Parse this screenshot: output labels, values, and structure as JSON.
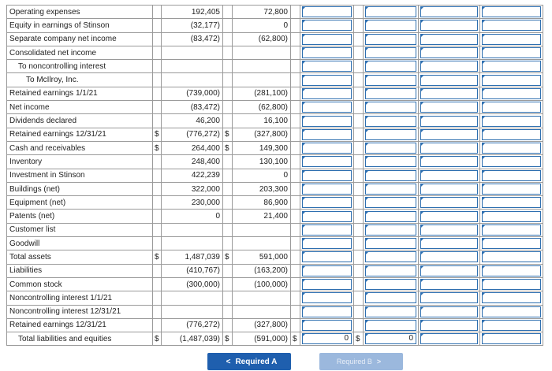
{
  "rows": [
    {
      "label": "Operating expenses",
      "indent": 0,
      "d1": "",
      "v1": "192,405",
      "d2": "",
      "v2": "72,800",
      "c1": "",
      "c2": "",
      "c3": "",
      "c4": ""
    },
    {
      "label": "Equity in earnings of Stinson",
      "indent": 0,
      "d1": "",
      "v1": "(32,177)",
      "d2": "",
      "v2": "0",
      "c1": "",
      "c2": "",
      "c3": "",
      "c4": ""
    },
    {
      "label": "Separate company net income",
      "indent": 0,
      "d1": "",
      "v1": "(83,472)",
      "d2": "",
      "v2": "(62,800)",
      "c1": "",
      "c2": "",
      "c3": "",
      "c4": ""
    },
    {
      "label": "Consolidated net income",
      "indent": 0,
      "d1": "",
      "v1": "",
      "d2": "",
      "v2": "",
      "c1": "",
      "c2": "",
      "c3": "",
      "c4": ""
    },
    {
      "label": "To noncontrolling interest",
      "indent": 1,
      "d1": "",
      "v1": "",
      "d2": "",
      "v2": "",
      "c1": "",
      "c2": "",
      "c3": "",
      "c4": ""
    },
    {
      "label": "To McIlroy, Inc.",
      "indent": 2,
      "d1": "",
      "v1": "",
      "d2": "",
      "v2": "",
      "c1": "",
      "c2": "",
      "c3": "",
      "c4": ""
    },
    {
      "label": "Retained earnings 1/1/21",
      "indent": 0,
      "d1": "",
      "v1": "(739,000)",
      "d2": "",
      "v2": "(281,100)",
      "c1": "",
      "c2": "",
      "c3": "",
      "c4": ""
    },
    {
      "label": "Net income",
      "indent": 0,
      "d1": "",
      "v1": "(83,472)",
      "d2": "",
      "v2": "(62,800)",
      "c1": "",
      "c2": "",
      "c3": "",
      "c4": ""
    },
    {
      "label": "Dividends declared",
      "indent": 0,
      "d1": "",
      "v1": "46,200",
      "d2": "",
      "v2": "16,100",
      "c1": "",
      "c2": "",
      "c3": "",
      "c4": ""
    },
    {
      "label": "Retained earnings 12/31/21",
      "indent": 0,
      "d1": "$",
      "v1": "(776,272)",
      "d2": "$",
      "v2": "(327,800)",
      "c1": "",
      "c2": "",
      "c3": "",
      "c4": ""
    },
    {
      "label": "Cash and receivables",
      "indent": 0,
      "d1": "$",
      "v1": "264,400",
      "d2": "$",
      "v2": "149,300",
      "c1": "",
      "c2": "",
      "c3": "",
      "c4": ""
    },
    {
      "label": "Inventory",
      "indent": 0,
      "d1": "",
      "v1": "248,400",
      "d2": "",
      "v2": "130,100",
      "c1": "",
      "c2": "",
      "c3": "",
      "c4": ""
    },
    {
      "label": "Investment in Stinson",
      "indent": 0,
      "d1": "",
      "v1": "422,239",
      "d2": "",
      "v2": "0",
      "c1": "",
      "c2": "",
      "c3": "",
      "c4": ""
    },
    {
      "label": "Buildings (net)",
      "indent": 0,
      "d1": "",
      "v1": "322,000",
      "d2": "",
      "v2": "203,300",
      "c1": "",
      "c2": "",
      "c3": "",
      "c4": ""
    },
    {
      "label": "Equipment (net)",
      "indent": 0,
      "d1": "",
      "v1": "230,000",
      "d2": "",
      "v2": "86,900",
      "c1": "",
      "c2": "",
      "c3": "",
      "c4": ""
    },
    {
      "label": "Patents (net)",
      "indent": 0,
      "d1": "",
      "v1": "0",
      "d2": "",
      "v2": "21,400",
      "c1": "",
      "c2": "",
      "c3": "",
      "c4": ""
    },
    {
      "label": "Customer list",
      "indent": 0,
      "d1": "",
      "v1": "",
      "d2": "",
      "v2": "",
      "c1": "",
      "c2": "",
      "c3": "",
      "c4": ""
    },
    {
      "label": "Goodwill",
      "indent": 0,
      "d1": "",
      "v1": "",
      "d2": "",
      "v2": "",
      "c1": "",
      "c2": "",
      "c3": "",
      "c4": ""
    },
    {
      "label": "Total assets",
      "indent": 0,
      "d1": "$",
      "v1": "1,487,039",
      "d2": "$",
      "v2": "591,000",
      "c1": "",
      "c2": "",
      "c3": "",
      "c4": ""
    },
    {
      "label": "Liabilities",
      "indent": 0,
      "d1": "",
      "v1": "(410,767)",
      "d2": "",
      "v2": "(163,200)",
      "c1": "",
      "c2": "",
      "c3": "",
      "c4": ""
    },
    {
      "label": "Common stock",
      "indent": 0,
      "d1": "",
      "v1": "(300,000)",
      "d2": "",
      "v2": "(100,000)",
      "c1": "",
      "c2": "",
      "c3": "",
      "c4": ""
    },
    {
      "label": "Noncontrolling interest 1/1/21",
      "indent": 0,
      "d1": "",
      "v1": "",
      "d2": "",
      "v2": "",
      "c1": "",
      "c2": "",
      "c3": "",
      "c4": ""
    },
    {
      "label": "Noncontrolling interest 12/31/21",
      "indent": 0,
      "d1": "",
      "v1": "",
      "d2": "",
      "v2": "",
      "c1": "",
      "c2": "",
      "c3": "",
      "c4": ""
    },
    {
      "label": "Retained earnings 12/31/21",
      "indent": 0,
      "d1": "",
      "v1": "(776,272)",
      "d2": "",
      "v2": "(327,800)",
      "c1": "",
      "c2": "",
      "c3": "",
      "c4": ""
    },
    {
      "label": "Total liabilities and equities",
      "indent": 1,
      "d1": "$",
      "v1": "(1,487,039)",
      "d2": "$",
      "v2": "(591,000)",
      "d3": "$",
      "c1": "0",
      "d4": "$",
      "c2": "0",
      "c3": "",
      "c4": ""
    }
  ],
  "buttons": {
    "prev_label": "Required A",
    "next_label": "Required B",
    "prev_chevron": "<",
    "next_chevron": ">"
  }
}
